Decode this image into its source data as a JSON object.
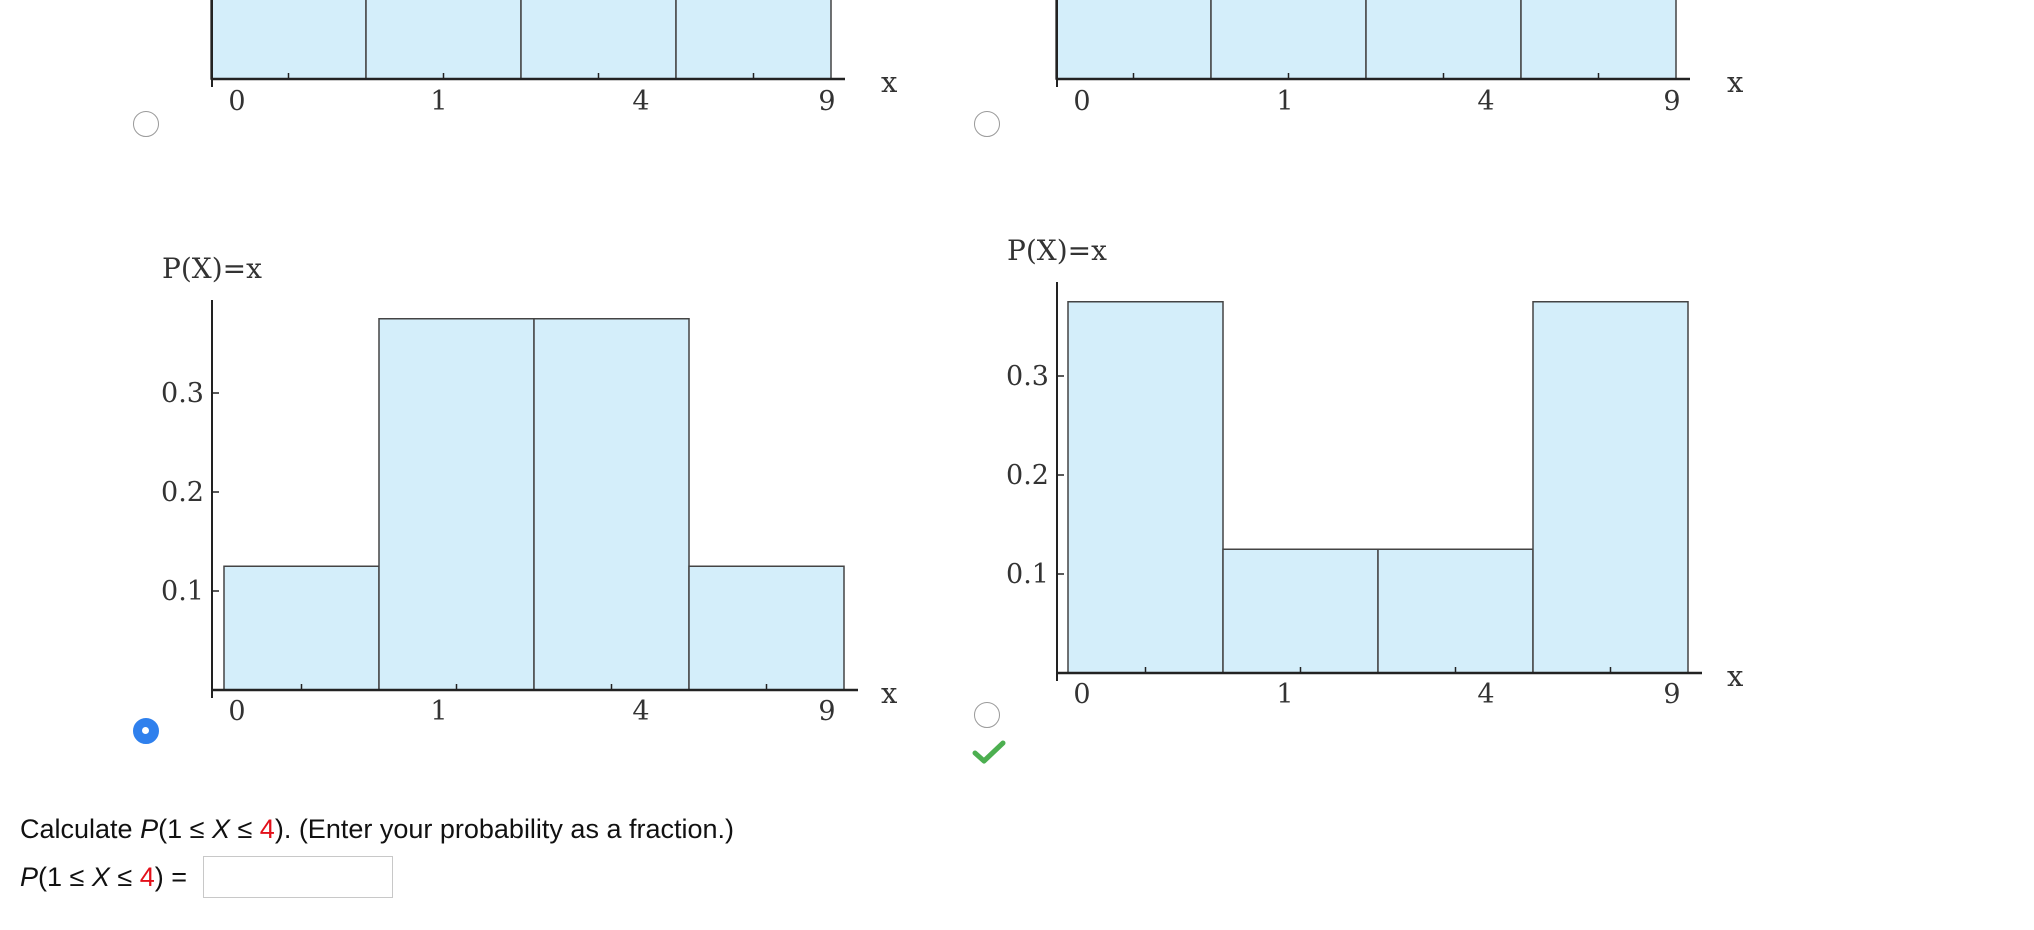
{
  "chart_data": [
    {
      "type": "bar",
      "categories": [
        "0",
        "1",
        "4",
        "9"
      ],
      "values": [
        null,
        null,
        null,
        null
      ],
      "xlabel": "x",
      "ylabel": "",
      "ylim": [
        0,
        0.4
      ]
    },
    {
      "type": "bar",
      "categories": [
        "0",
        "1",
        "4",
        "9"
      ],
      "values": [
        null,
        null,
        null,
        null
      ],
      "xlabel": "x",
      "ylabel": "",
      "ylim": [
        0,
        0.4
      ]
    },
    {
      "type": "bar",
      "categories": [
        "0",
        "1",
        "4",
        "9"
      ],
      "values": [
        0.125,
        0.375,
        0.375,
        0.125
      ],
      "ylabel": "P(X)=x",
      "xlabel": "x",
      "yticks": [
        "0.1",
        "0.2",
        "0.3"
      ],
      "ylim": [
        0,
        0.4
      ]
    },
    {
      "type": "bar",
      "categories": [
        "0",
        "1",
        "4",
        "9"
      ],
      "values": [
        0.375,
        0.125,
        0.125,
        0.375
      ],
      "ylabel": "P(X)=x",
      "xlabel": "x",
      "yticks": [
        "0.1",
        "0.2",
        "0.3"
      ],
      "ylim": [
        0,
        0.4
      ]
    }
  ],
  "options": [
    {
      "selected": false
    },
    {
      "selected": false
    },
    {
      "selected": true
    },
    {
      "selected": false
    }
  ],
  "question": {
    "prefix": "Calculate ",
    "p": "P",
    "open": "(1 ≤ ",
    "x": "X",
    "le": " ≤ ",
    "upper": "4",
    "close": ")",
    "suffix": ". (Enter your probability as a fraction.)"
  },
  "answer": {
    "p": "P",
    "open": "(1 ≤ ",
    "x": "X",
    "le": " ≤ ",
    "upper": "4",
    "close": ") =",
    "value": ""
  },
  "colors": {
    "bar_fill": "#d4eefa",
    "bar_stroke": "#444444",
    "radio_selected": "#2f80ed",
    "correct_check": "#4caf50",
    "highlight": "#e3101a"
  },
  "icons": {
    "correct": "check-icon"
  }
}
